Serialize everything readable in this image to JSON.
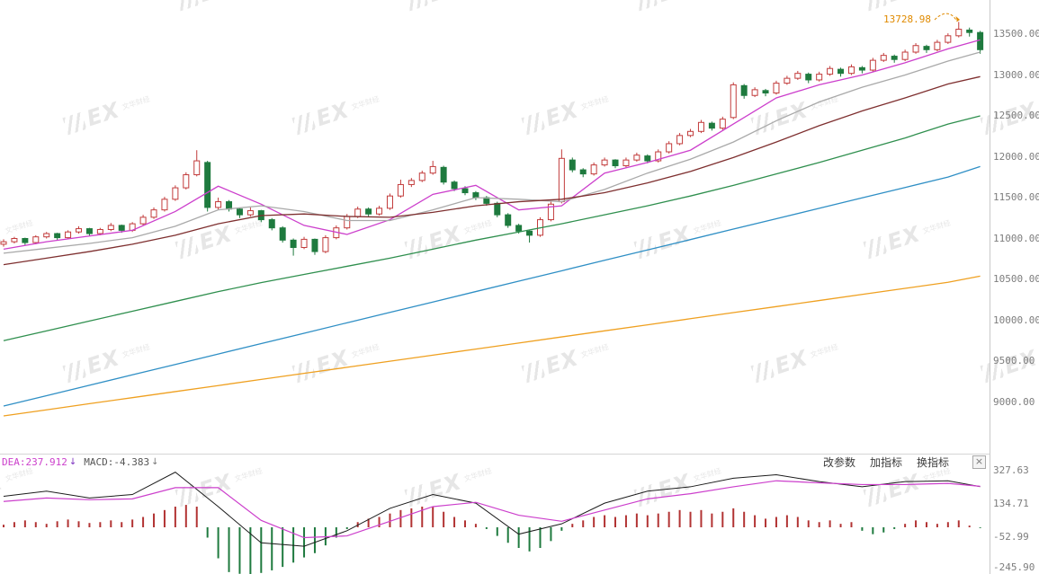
{
  "ui": {
    "watermark": {
      "text": "EX",
      "subtext": "文华财经"
    },
    "macd_header": {
      "dea_readout": "DEA:237.912",
      "dea_arrow": "↓",
      "macd_readout": "MACD:-4.383",
      "macd_arrow": "↓"
    },
    "toolbar": {
      "buttons": [
        {
          "label": "改参数"
        },
        {
          "label": "加指标"
        },
        {
          "label": "换指标"
        }
      ],
      "close_label": "×"
    }
  },
  "chart_data": [
    {
      "type": "candlestick",
      "title": "",
      "x_count": 92,
      "ylim": [
        8800,
        13750
      ],
      "y_tick_labels": [
        "13500.00",
        "13000.00",
        "12500.00",
        "12000.00",
        "11500.00",
        "11000.00",
        "10500.00",
        "10000.00",
        "9500.00",
        "9000.00"
      ],
      "grid": false,
      "annotations": [
        {
          "text": "13728.98",
          "color": "#e08a00"
        }
      ],
      "up_color": "#c23b3b",
      "down_color": "#1e7a3e",
      "candles_ohlc": [
        [
          10930,
          10990,
          10900,
          10960
        ],
        [
          10960,
          11020,
          10940,
          11000
        ],
        [
          11000,
          11010,
          10920,
          10950
        ],
        [
          10950,
          11040,
          10930,
          11020
        ],
        [
          11020,
          11080,
          11000,
          11060
        ],
        [
          11060,
          11070,
          10980,
          11010
        ],
        [
          11010,
          11100,
          11000,
          11080
        ],
        [
          11080,
          11150,
          11060,
          11120
        ],
        [
          11120,
          11130,
          11030,
          11060
        ],
        [
          11060,
          11130,
          11040,
          11110
        ],
        [
          11110,
          11190,
          11090,
          11160
        ],
        [
          11160,
          11170,
          11070,
          11100
        ],
        [
          11100,
          11200,
          11080,
          11180
        ],
        [
          11180,
          11290,
          11160,
          11260
        ],
        [
          11260,
          11380,
          11240,
          11350
        ],
        [
          11350,
          11510,
          11330,
          11480
        ],
        [
          11480,
          11650,
          11460,
          11620
        ],
        [
          11620,
          11810,
          11600,
          11780
        ],
        [
          11780,
          12080,
          11760,
          11950
        ],
        [
          11930,
          11950,
          11330,
          11380
        ],
        [
          11380,
          11500,
          11350,
          11450
        ],
        [
          11450,
          11470,
          11330,
          11360
        ],
        [
          11360,
          11380,
          11250,
          11290
        ],
        [
          11290,
          11380,
          11270,
          11340
        ],
        [
          11340,
          11350,
          11200,
          11230
        ],
        [
          11230,
          11250,
          11100,
          11130
        ],
        [
          11130,
          11150,
          10950,
          10980
        ],
        [
          10980,
          11000,
          10790,
          10890
        ],
        [
          10890,
          11020,
          10870,
          10990
        ],
        [
          10990,
          11000,
          10800,
          10840
        ],
        [
          10840,
          11040,
          10820,
          11010
        ],
        [
          11010,
          11160,
          10990,
          11130
        ],
        [
          11130,
          11300,
          11110,
          11270
        ],
        [
          11270,
          11390,
          11250,
          11360
        ],
        [
          11360,
          11380,
          11270,
          11300
        ],
        [
          11300,
          11400,
          11280,
          11370
        ],
        [
          11370,
          11550,
          11350,
          11520
        ],
        [
          11520,
          11720,
          11500,
          11660
        ],
        [
          11660,
          11740,
          11630,
          11710
        ],
        [
          11710,
          11830,
          11690,
          11800
        ],
        [
          11800,
          11950,
          11780,
          11880
        ],
        [
          11870,
          11890,
          11660,
          11690
        ],
        [
          11690,
          11710,
          11580,
          11610
        ],
        [
          11610,
          11640,
          11530,
          11560
        ],
        [
          11560,
          11580,
          11470,
          11500
        ],
        [
          11500,
          11520,
          11400,
          11430
        ],
        [
          11430,
          11450,
          11260,
          11290
        ],
        [
          11290,
          11310,
          11130,
          11160
        ],
        [
          11160,
          11180,
          11060,
          11090
        ],
        [
          11090,
          11110,
          10950,
          11040
        ],
        [
          11040,
          11260,
          11020,
          11230
        ],
        [
          11230,
          11450,
          11210,
          11420
        ],
        [
          11450,
          12090,
          11430,
          11980
        ],
        [
          11960,
          11990,
          11810,
          11840
        ],
        [
          11840,
          11860,
          11750,
          11790
        ],
        [
          11790,
          11930,
          11770,
          11900
        ],
        [
          11900,
          11990,
          11880,
          11960
        ],
        [
          11960,
          11970,
          11860,
          11890
        ],
        [
          11890,
          11990,
          11870,
          11960
        ],
        [
          11960,
          12050,
          11940,
          12020
        ],
        [
          12010,
          12030,
          11920,
          11950
        ],
        [
          11950,
          12090,
          11930,
          12060
        ],
        [
          12060,
          12190,
          12040,
          12160
        ],
        [
          12160,
          12290,
          12140,
          12260
        ],
        [
          12260,
          12340,
          12240,
          12310
        ],
        [
          12310,
          12450,
          12290,
          12420
        ],
        [
          12410,
          12430,
          12320,
          12350
        ],
        [
          12350,
          12490,
          12330,
          12460
        ],
        [
          12480,
          12910,
          12460,
          12880
        ],
        [
          12870,
          12890,
          12710,
          12750
        ],
        [
          12750,
          12850,
          12730,
          12820
        ],
        [
          12810,
          12830,
          12740,
          12780
        ],
        [
          12780,
          12930,
          12760,
          12900
        ],
        [
          12900,
          12990,
          12880,
          12960
        ],
        [
          12960,
          13050,
          12940,
          13020
        ],
        [
          13010,
          13030,
          12900,
          12940
        ],
        [
          12940,
          13040,
          12920,
          13010
        ],
        [
          13010,
          13110,
          12990,
          13080
        ],
        [
          13070,
          13090,
          12980,
          13020
        ],
        [
          13020,
          13130,
          13000,
          13100
        ],
        [
          13090,
          13110,
          13020,
          13060
        ],
        [
          13060,
          13210,
          13040,
          13180
        ],
        [
          13180,
          13270,
          13160,
          13240
        ],
        [
          13230,
          13250,
          13150,
          13190
        ],
        [
          13190,
          13310,
          13170,
          13280
        ],
        [
          13280,
          13390,
          13260,
          13360
        ],
        [
          13350,
          13370,
          13270,
          13310
        ],
        [
          13310,
          13430,
          13290,
          13400
        ],
        [
          13400,
          13510,
          13380,
          13480
        ],
        [
          13480,
          13650,
          13460,
          13560
        ],
        [
          13550,
          13580,
          13470,
          13520
        ],
        [
          13520,
          13540,
          13260,
          13310
        ]
      ],
      "sample_idx": [
        0,
        4,
        8,
        12,
        16,
        20,
        24,
        28,
        32,
        36,
        40,
        44,
        48,
        52,
        56,
        60,
        64,
        68,
        72,
        76,
        80,
        84,
        88,
        91
      ],
      "series": [
        {
          "name": "ma-fast-magenta",
          "color": "#cc3fcc",
          "values": [
            10870,
            10960,
            11030,
            11100,
            11330,
            11640,
            11420,
            11160,
            11050,
            11230,
            11540,
            11650,
            11350,
            11400,
            11800,
            11930,
            12080,
            12400,
            12720,
            12880,
            13000,
            13150,
            13320,
            13430
          ]
        },
        {
          "name": "ma-gray",
          "color": "#a9a9a9",
          "values": [
            10820,
            10880,
            10940,
            11010,
            11150,
            11350,
            11400,
            11330,
            11220,
            11220,
            11350,
            11500,
            11480,
            11450,
            11600,
            11800,
            11970,
            12180,
            12440,
            12670,
            12850,
            13000,
            13170,
            13280
          ]
        },
        {
          "name": "ma-mid-maroon",
          "color": "#7e2f2f",
          "values": [
            10680,
            10760,
            10840,
            10930,
            11040,
            11180,
            11280,
            11300,
            11270,
            11260,
            11320,
            11400,
            11450,
            11480,
            11560,
            11680,
            11820,
            11990,
            12180,
            12380,
            12560,
            12720,
            12890,
            12980
          ]
        },
        {
          "name": "ma-long-green",
          "color": "#2f8f4e",
          "values": [
            9750,
            9870,
            9990,
            10110,
            10230,
            10350,
            10460,
            10560,
            10660,
            10760,
            10870,
            10980,
            11080,
            11180,
            11290,
            11400,
            11520,
            11650,
            11790,
            11930,
            12080,
            12230,
            12400,
            12500
          ]
        },
        {
          "name": "ma-longer-blue",
          "color": "#2f8fc5",
          "values": [
            8950,
            9077,
            9205,
            9332,
            9459,
            9587,
            9714,
            9841,
            9969,
            10096,
            10223,
            10351,
            10478,
            10605,
            10733,
            10860,
            10987,
            11115,
            11242,
            11369,
            11497,
            11624,
            11751,
            11880
          ]
        },
        {
          "name": "ma-longest-orange",
          "color": "#efa020",
          "values": [
            8830,
            8904,
            8979,
            9053,
            9127,
            9201,
            9276,
            9350,
            9424,
            9499,
            9573,
            9647,
            9721,
            9796,
            9870,
            9944,
            10019,
            10093,
            10167,
            10241,
            10316,
            10390,
            10464,
            10540
          ]
        }
      ]
    },
    {
      "type": "bar+line",
      "name": "MACD",
      "ylim": [
        -280,
        340
      ],
      "y_tick_labels": [
        "327.63",
        "134.71",
        "-52.99",
        "-245.90"
      ],
      "sample_idx": [
        0,
        4,
        8,
        12,
        16,
        20,
        24,
        28,
        32,
        36,
        40,
        44,
        48,
        52,
        56,
        60,
        64,
        68,
        72,
        76,
        80,
        84,
        88,
        91
      ],
      "series": [
        {
          "name": "DIF",
          "color": "#1c1c1c",
          "values": [
            180,
            210,
            170,
            190,
            320,
            120,
            -90,
            -110,
            -20,
            110,
            190,
            140,
            -40,
            20,
            140,
            210,
            235,
            285,
            305,
            265,
            235,
            265,
            270,
            236
          ]
        },
        {
          "name": "DEA",
          "color": "#cc3fcc",
          "values": [
            150,
            170,
            160,
            165,
            230,
            230,
            40,
            -60,
            -50,
            35,
            120,
            145,
            70,
            35,
            100,
            165,
            195,
            235,
            270,
            258,
            248,
            248,
            255,
            237.9
          ]
        }
      ],
      "histogram": {
        "up_color": "#b23333",
        "down_color": "#1e7a3e",
        "values": [
          15,
          30,
          40,
          30,
          20,
          35,
          45,
          35,
          25,
          30,
          40,
          30,
          45,
          60,
          80,
          100,
          120,
          130,
          120,
          -60,
          -180,
          -260,
          -270,
          -280,
          -265,
          -250,
          -230,
          -205,
          -175,
          -150,
          -105,
          -60,
          -10,
          30,
          50,
          60,
          80,
          100,
          110,
          120,
          120,
          90,
          60,
          40,
          20,
          -10,
          -50,
          -90,
          -120,
          -140,
          -120,
          -80,
          -20,
          20,
          40,
          60,
          70,
          60,
          70,
          80,
          70,
          80,
          90,
          100,
          90,
          100,
          80,
          90,
          110,
          90,
          70,
          50,
          60,
          70,
          60,
          40,
          30,
          40,
          20,
          30,
          -20,
          -40,
          -30,
          -10,
          20,
          40,
          30,
          20,
          30,
          40,
          10,
          -4.4
        ]
      }
    }
  ]
}
